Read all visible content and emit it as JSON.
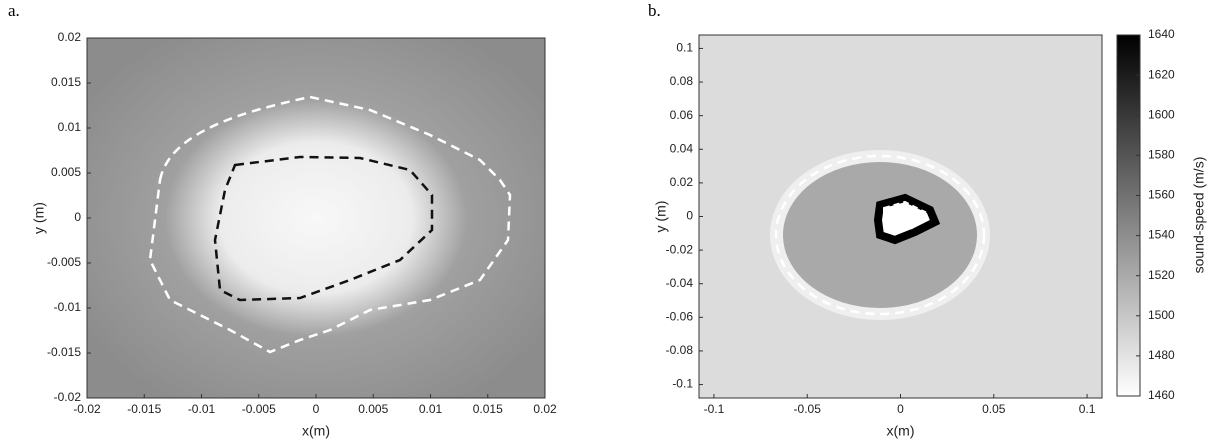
{
  "chart_data": [
    {
      "type": "heatmap",
      "panel_label": "a.",
      "xlabel": "x(m)",
      "ylabel": "y (m)",
      "xlim": [
        -0.02,
        0.02
      ],
      "ylim": [
        -0.02,
        0.02
      ],
      "xticks": [
        -0.02,
        -0.015,
        -0.01,
        -0.005,
        0,
        0.005,
        0.01,
        0.015,
        0.02
      ],
      "yticks": [
        -0.02,
        -0.015,
        -0.01,
        -0.005,
        0,
        0.005,
        0.01,
        0.015,
        0.02
      ]
    },
    {
      "type": "heatmap",
      "panel_label": "b.",
      "xlabel": "x(m)",
      "ylabel": "y (m)",
      "xlim": [
        -0.108,
        0.108
      ],
      "ylim": [
        -0.108,
        0.108
      ],
      "xticks": [
        -0.1,
        -0.05,
        0,
        0.05,
        0.1
      ],
      "yticks": [
        -0.1,
        -0.08,
        -0.06,
        -0.04,
        -0.02,
        0,
        0.02,
        0.04,
        0.06,
        0.08,
        0.1
      ],
      "colorbar": {
        "label": "sound-speed (m/s)",
        "lim": [
          1460,
          1640
        ],
        "ticks": [
          1460,
          1480,
          1500,
          1520,
          1540,
          1560,
          1580,
          1600,
          1620,
          1640
        ]
      }
    }
  ]
}
